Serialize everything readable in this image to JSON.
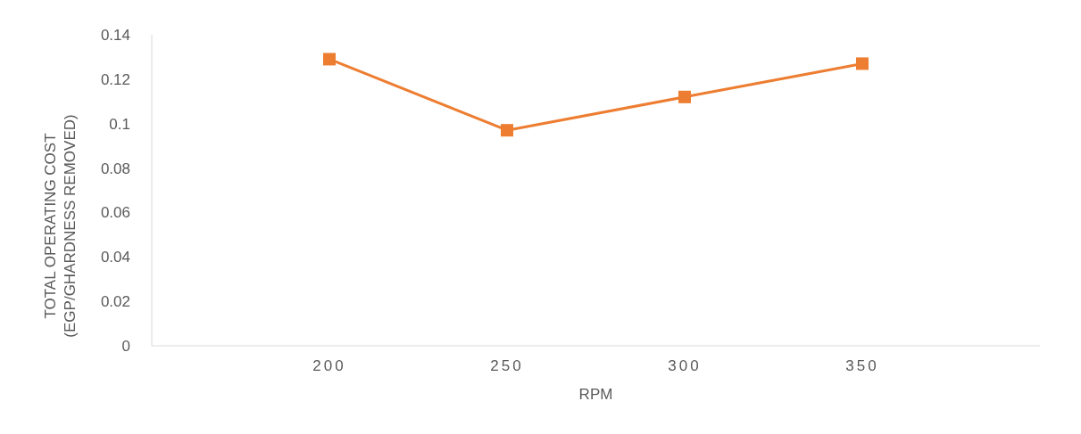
{
  "chart_data": {
    "type": "line",
    "xlabel": "RPM",
    "ylabel": "TOTAL OPERATING COST (EGP/GHARDNESS REMOVED)",
    "x": [
      200,
      250,
      300,
      350
    ],
    "series": [
      {
        "color": "#ed7d31",
        "values": [
          0.129,
          0.097,
          0.112,
          0.127
        ]
      }
    ],
    "xlim": [
      150,
      400
    ],
    "xticks": [
      200,
      250,
      300,
      350
    ],
    "ylim": [
      0,
      0.14
    ],
    "yticks": [
      0,
      0.02,
      0.04,
      0.06,
      0.08,
      0.1,
      0.12,
      0.14
    ],
    "grid": false,
    "legend": false,
    "marker": "square",
    "line_style": "solid"
  }
}
